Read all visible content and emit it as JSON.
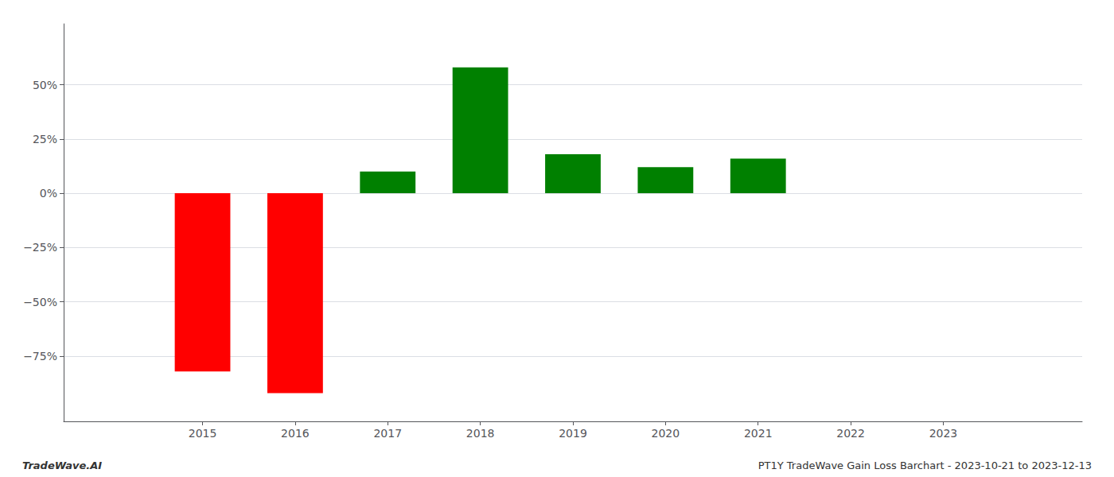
{
  "chart_data": {
    "type": "bar",
    "x": [
      2015,
      2016,
      2017,
      2018,
      2019,
      2020,
      2021,
      2022,
      2023
    ],
    "values": [
      -0.82,
      -0.92,
      0.1,
      0.58,
      0.18,
      0.12,
      0.16,
      0.0,
      0.0
    ],
    "colors": [
      "#ff0000",
      "#ff0000",
      "#008000",
      "#008000",
      "#008000",
      "#008000",
      "#008000",
      "#008000",
      "#008000"
    ],
    "xlim": [
      2013.5,
      2024.5
    ],
    "xticks": [
      2015,
      2016,
      2017,
      2018,
      2019,
      2020,
      2021,
      2022,
      2023
    ],
    "ylim": [
      -1.05,
      0.78
    ],
    "yticks": [
      {
        "value": -0.75,
        "label": "−75%"
      },
      {
        "value": -0.5,
        "label": "−50%"
      },
      {
        "value": -0.25,
        "label": "−25%"
      },
      {
        "value": 0.0,
        "label": "0%"
      },
      {
        "value": 0.25,
        "label": "25%"
      },
      {
        "value": 0.5,
        "label": "50%"
      }
    ],
    "grid": true,
    "annotations": [
      "TradeWave.AI",
      "PT1Y TradeWave Gain Loss Barchart - 2023-10-21 to 2023-12-13"
    ]
  }
}
